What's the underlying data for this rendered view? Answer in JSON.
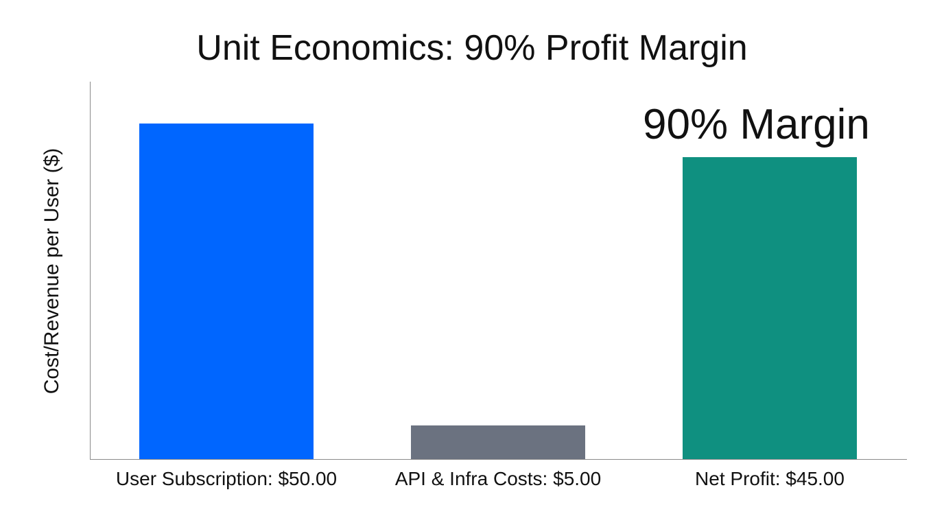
{
  "chart_data": {
    "type": "bar",
    "title": "Unit Economics: 90% Profit Margin",
    "xlabel": "",
    "ylabel": "Cost/Revenue per User ($)",
    "categories": [
      "User Subscription: $50.00",
      "API & Infra Costs: $5.00",
      "Net Profit: $45.00"
    ],
    "values": [
      50.0,
      5.0,
      45.0
    ],
    "colors": [
      "#0066ff",
      "#6b7280",
      "#0f9080"
    ],
    "ylim": [
      0,
      56
    ],
    "grid": false,
    "legend": null,
    "annotations": [
      {
        "text": "90% Margin",
        "target": "Net Profit: $45.00"
      }
    ]
  },
  "labels": {
    "title": "Unit Economics: 90% Profit Margin",
    "ylabel": "Cost/Revenue per User ($)",
    "annotation": "90% Margin",
    "xticks": [
      "User Subscription: $50.00",
      "API & Infra Costs: $5.00",
      "Net Profit: $45.00"
    ]
  }
}
